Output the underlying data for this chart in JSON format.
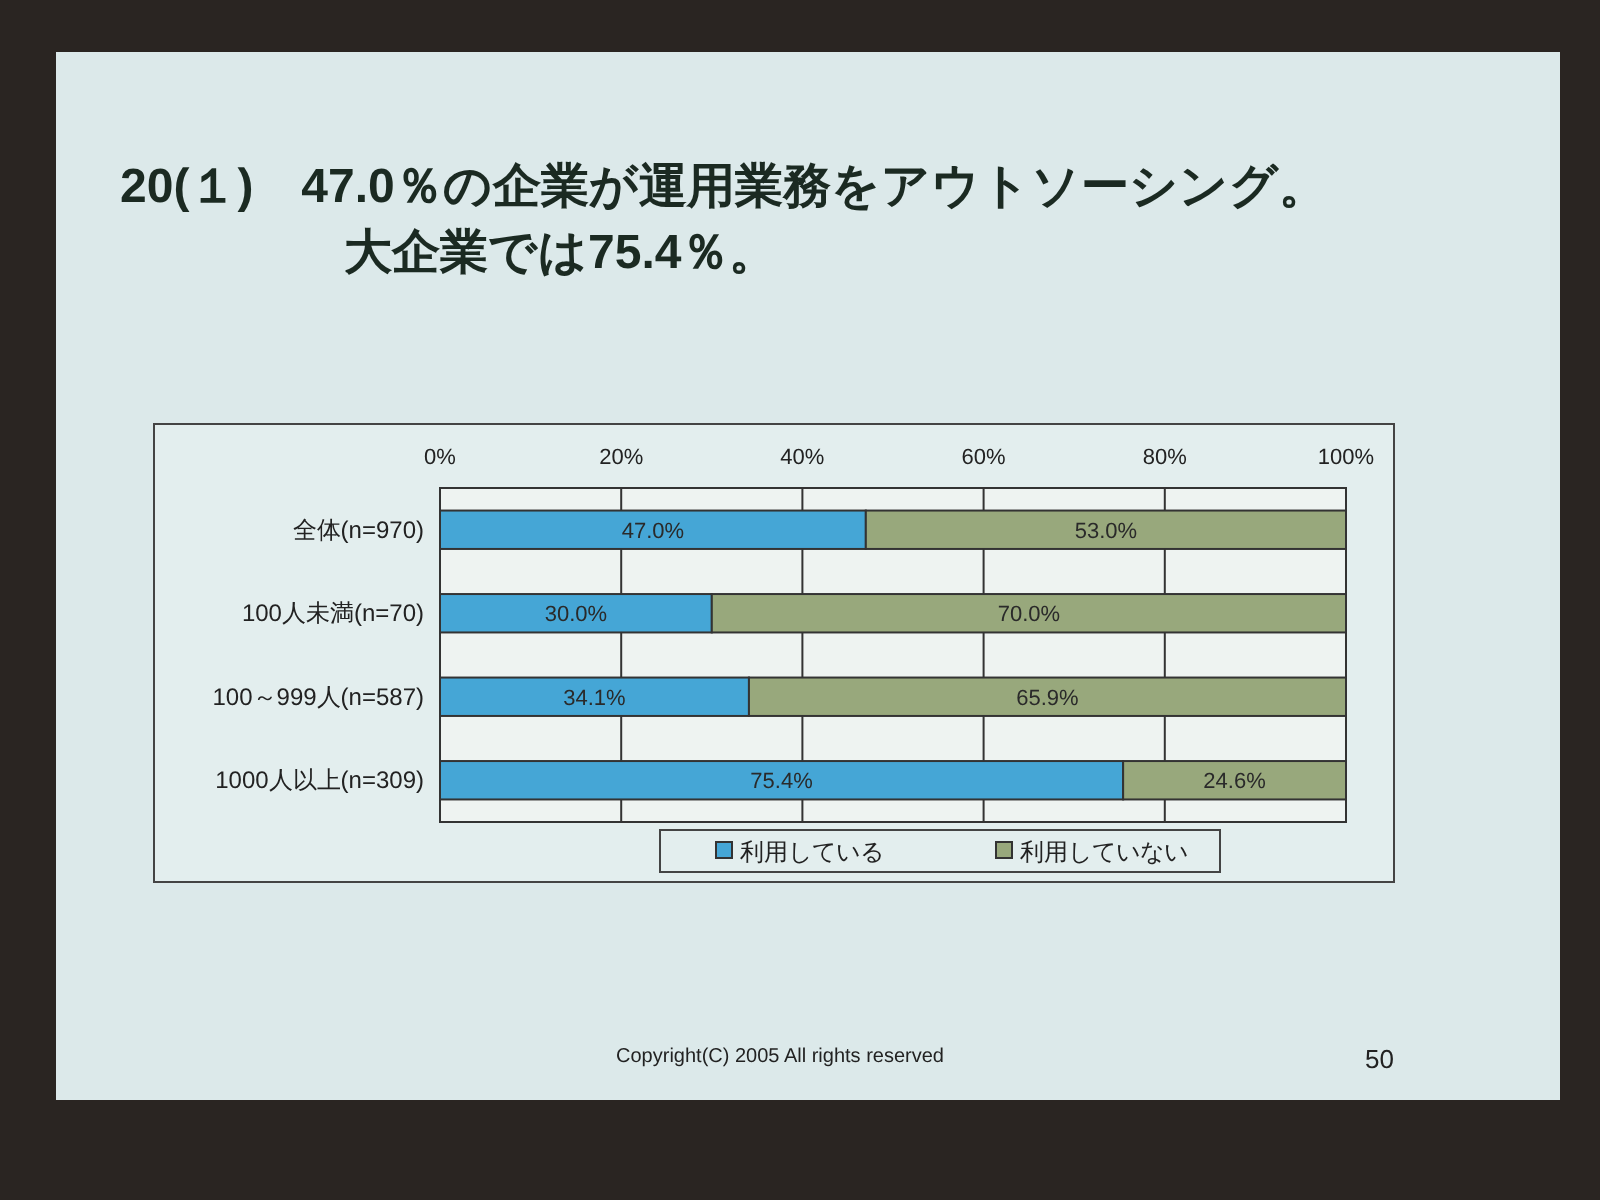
{
  "chart_data": {
    "type": "bar",
    "orientation": "horizontal",
    "stacked": true,
    "title": "20(１)　47.0％の企業が運用業務をアウトソーシング。",
    "subtitle": "大企業では75.4％。",
    "categories": [
      "全体(n=970)",
      "100人未満(n=70)",
      "100～999人(n=587)",
      "1000人以上(n=309)"
    ],
    "series": [
      {
        "name": "利用している",
        "color": "#45a6d6",
        "values": [
          47.0,
          30.0,
          34.1,
          75.4
        ],
        "value_labels": [
          "47.0%",
          "30.0%",
          "34.1%",
          "75.4%"
        ]
      },
      {
        "name": "利用していない",
        "color": "#98a87c",
        "values": [
          53.0,
          70.0,
          65.9,
          24.6
        ],
        "value_labels": [
          "53.0%",
          "70.0%",
          "65.9%",
          "24.6%"
        ]
      }
    ],
    "xlim": [
      0,
      100
    ],
    "xticks": [
      {
        "value": 0,
        "label": "0%"
      },
      {
        "value": 20,
        "label": "20%"
      },
      {
        "value": 40,
        "label": "40%"
      },
      {
        "value": 60,
        "label": "60%"
      },
      {
        "value": 80,
        "label": "80%"
      },
      {
        "value": 100,
        "label": "100%"
      }
    ],
    "grid": "x",
    "legend": "bottom",
    "annotations": [
      "Copyright(C) 2005 All rights reserved",
      "50"
    ]
  }
}
